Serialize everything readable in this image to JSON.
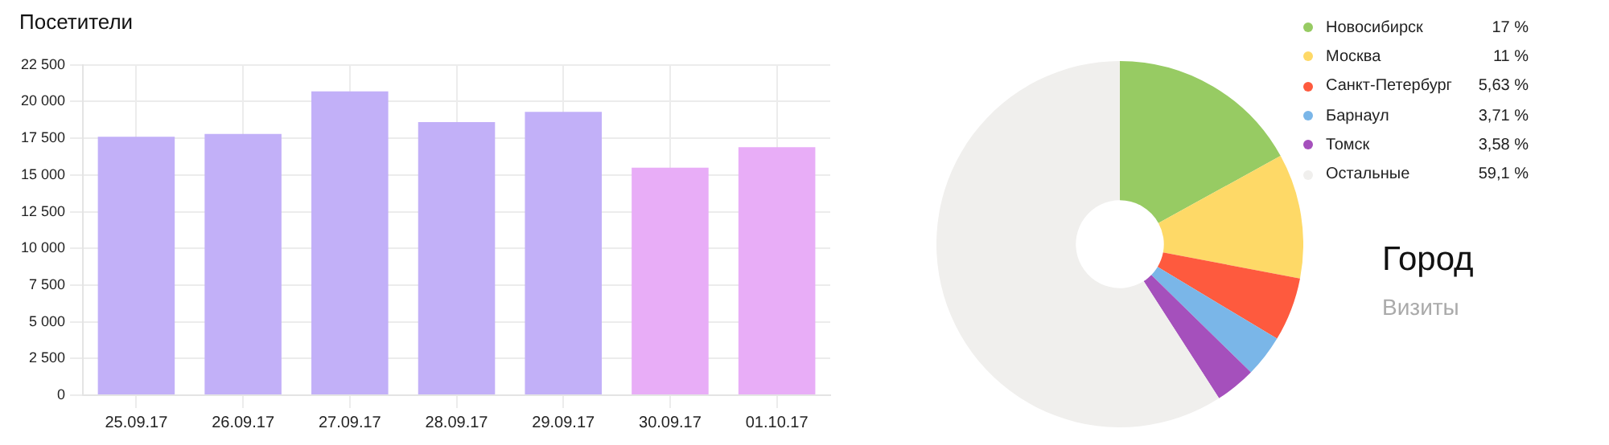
{
  "chart_data": [
    {
      "type": "bar",
      "title": "Посетители",
      "categories": [
        "25.09.17",
        "26.09.17",
        "27.09.17",
        "28.09.17",
        "29.09.17",
        "30.09.17",
        "01.10.17"
      ],
      "values": [
        17600,
        17800,
        20700,
        18600,
        19300,
        15500,
        16900
      ],
      "colors": [
        "#c2b0f8",
        "#c2b0f8",
        "#c2b0f8",
        "#c2b0f8",
        "#c2b0f8",
        "#e8adf7",
        "#e8adf7"
      ],
      "ylim": [
        0,
        22500
      ],
      "yticks": [
        0,
        {
          "value": 2500,
          "label": "2 500"
        },
        {
          "value": 5000,
          "label": "5 000"
        },
        {
          "value": 7500,
          "label": "7 500"
        },
        {
          "value": 10000,
          "label": "10 000"
        },
        {
          "value": 12500,
          "label": "12 500"
        },
        {
          "value": 15000,
          "label": "15 000"
        },
        {
          "value": 17500,
          "label": "17 500"
        },
        {
          "value": 20000,
          "label": "20 000"
        },
        {
          "value": 22500,
          "label": "22 500"
        }
      ],
      "grid": true,
      "legend": false
    },
    {
      "type": "donut",
      "title": "Город",
      "subtitle": "Визиты",
      "categories": [
        "Новосибирск",
        "Москва",
        "Санкт-Петербург",
        "Барнаул",
        "Томск",
        "Остальные"
      ],
      "values": [
        17,
        11,
        5.63,
        3.71,
        3.58,
        59.1
      ],
      "colors": [
        "#97cb63",
        "#fed967",
        "#fe5a3e",
        "#7ab6e8",
        "#a550bc",
        "#f0efed"
      ],
      "value_labels": [
        "17 %",
        "11 %",
        "5,63 %",
        "3,71 %",
        "3,58 %",
        "59,1 %"
      ],
      "legend": "top right"
    }
  ]
}
